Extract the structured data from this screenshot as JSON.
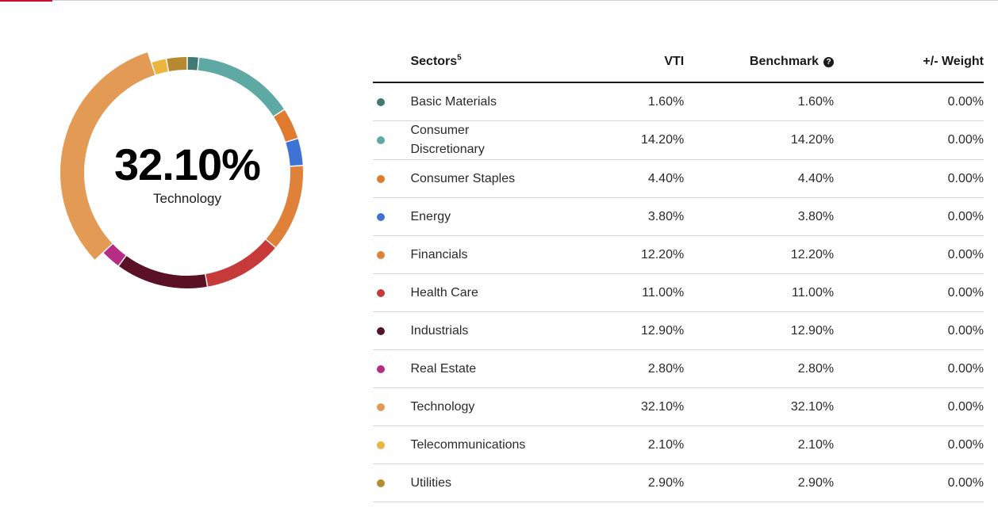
{
  "chart_data": {
    "type": "pie",
    "style": "donut",
    "highlighted": "Technology",
    "center": {
      "value": "32.10%",
      "label": "Technology"
    },
    "categories": [
      "Basic Materials",
      "Consumer Discretionary",
      "Consumer Staples",
      "Energy",
      "Financials",
      "Health Care",
      "Industrials",
      "Real Estate",
      "Technology",
      "Telecommunications",
      "Utilities"
    ],
    "values": [
      1.6,
      14.2,
      4.4,
      3.8,
      12.2,
      11.0,
      12.9,
      2.8,
      32.1,
      2.1,
      2.9
    ],
    "colors": [
      "#3f7a73",
      "#5fa9a5",
      "#e07a2e",
      "#3e73d6",
      "#e0813a",
      "#c63a3a",
      "#5a1025",
      "#b72d85",
      "#e39a55",
      "#ecb53e",
      "#b78a2f"
    ]
  },
  "table": {
    "headers": {
      "sectors": "Sectors",
      "sectors_footnote": "5",
      "vti": "VTI",
      "benchmark": "Benchmark",
      "weight": "+/- Weight"
    },
    "rows": [
      {
        "name": "Basic Materials",
        "color": "#3f7a73",
        "vti": "1.60%",
        "benchmark": "1.60%",
        "weight": "0.00%"
      },
      {
        "name": "Consumer Discretionary",
        "color": "#5fa9a5",
        "vti": "14.20%",
        "benchmark": "14.20%",
        "weight": "0.00%"
      },
      {
        "name": "Consumer Staples",
        "color": "#e07a2e",
        "vti": "4.40%",
        "benchmark": "4.40%",
        "weight": "0.00%"
      },
      {
        "name": "Energy",
        "color": "#3e73d6",
        "vti": "3.80%",
        "benchmark": "3.80%",
        "weight": "0.00%"
      },
      {
        "name": "Financials",
        "color": "#e0813a",
        "vti": "12.20%",
        "benchmark": "12.20%",
        "weight": "0.00%"
      },
      {
        "name": "Health Care",
        "color": "#c63a3a",
        "vti": "11.00%",
        "benchmark": "11.00%",
        "weight": "0.00%"
      },
      {
        "name": "Industrials",
        "color": "#5a1025",
        "vti": "12.90%",
        "benchmark": "12.90%",
        "weight": "0.00%"
      },
      {
        "name": "Real Estate",
        "color": "#b72d85",
        "vti": "2.80%",
        "benchmark": "2.80%",
        "weight": "0.00%"
      },
      {
        "name": "Technology",
        "color": "#e39a55",
        "vti": "32.10%",
        "benchmark": "32.10%",
        "weight": "0.00%"
      },
      {
        "name": "Telecommunications",
        "color": "#ecb53e",
        "vti": "2.10%",
        "benchmark": "2.10%",
        "weight": "0.00%"
      },
      {
        "name": "Utilities",
        "color": "#b78a2f",
        "vti": "2.90%",
        "benchmark": "2.90%",
        "weight": "0.00%"
      }
    ]
  }
}
